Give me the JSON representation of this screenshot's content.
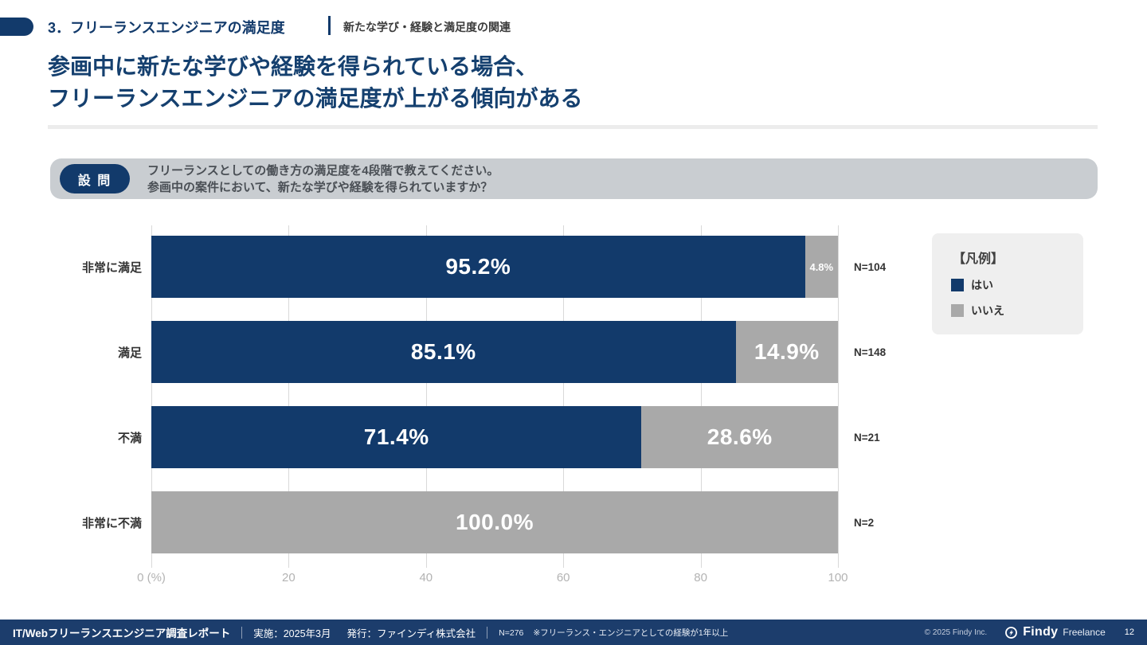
{
  "header": {
    "section_title": "3．フリーランスエンジニアの満足度",
    "section_subtitle": "新たな学び・経験と満足度の関連"
  },
  "title": {
    "line1": "参画中に新たな学びや経験を得られている場合、",
    "line2": "フリーランスエンジニアの満足度が上がる傾向がある"
  },
  "question": {
    "badge": "設 問",
    "line1": "フリーランスとしての働き方の満足度を4段階で教えてください。",
    "line2": "参画中の案件において、新たな学びや経験を得られていますか？"
  },
  "legend": {
    "title": "【凡例】",
    "items": [
      {
        "label": "はい",
        "color": "#123A6B"
      },
      {
        "label": "いいえ",
        "color": "#A9A9A9"
      }
    ]
  },
  "chart_data": {
    "type": "bar",
    "orientation": "horizontal-stacked",
    "categories": [
      "非常に満足",
      "満足",
      "不満",
      "非常に不満"
    ],
    "series": [
      {
        "name": "はい",
        "color": "#123A6B",
        "values": [
          95.2,
          85.1,
          71.4,
          0
        ]
      },
      {
        "name": "いいえ",
        "color": "#A9A9A9",
        "values": [
          4.8,
          14.9,
          28.6,
          100.0
        ]
      }
    ],
    "value_labels": [
      [
        "95.2%",
        "4.8%"
      ],
      [
        "85.1%",
        "14.9%"
      ],
      [
        "71.4%",
        "28.6%"
      ],
      [
        "",
        "100.0%"
      ]
    ],
    "n_labels": [
      "N=104",
      "N=148",
      "N=21",
      "N=2"
    ],
    "x_ticks": [
      {
        "value": 0,
        "label": "0 (%)"
      },
      {
        "value": 20,
        "label": "20"
      },
      {
        "value": 40,
        "label": "40"
      },
      {
        "value": 60,
        "label": "60"
      },
      {
        "value": 80,
        "label": "80"
      },
      {
        "value": 100,
        "label": "100"
      }
    ],
    "xlim": [
      0,
      100
    ],
    "grid": true,
    "legend_position": "right"
  },
  "colors": {
    "navy": "#123A6B",
    "gray": "#A9A9A9",
    "footer_bg": "#1C3D6C",
    "question_bg": "#C9CDD1",
    "legend_bg": "#EFEFEF",
    "gridline": "#D9D9D9"
  },
  "footer": {
    "report_title": "IT/Webフリーランスエンジニア調査レポート",
    "conducted": "実施：2025年3月",
    "publisher": "発行：ファインディ株式会社",
    "sample": "N=276",
    "note": "※フリーランス・エンジニアとしての経験が1年以上",
    "copyright": "© 2025 Findy Inc.",
    "brand": "Findy",
    "brand_sub": "Freelance",
    "page_number": "12"
  }
}
